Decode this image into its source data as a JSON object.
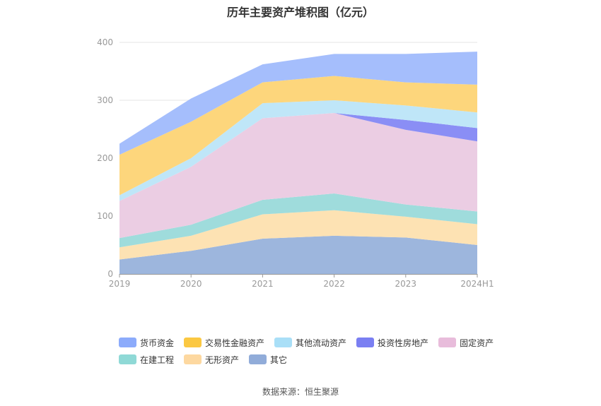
{
  "chart_data": {
    "type": "area",
    "stacked": true,
    "title": "历年主要资产堆积图（亿元）",
    "categories": [
      "2019",
      "2020",
      "2021",
      "2022",
      "2023",
      "2024H1"
    ],
    "y_ticks": [
      "0",
      "100",
      "200",
      "300",
      "400"
    ],
    "ylim": [
      0,
      400
    ],
    "grid": true,
    "series": [
      {
        "name": "其它",
        "color": "#9db6dd",
        "values": [
          25,
          40,
          61,
          66,
          63,
          50
        ]
      },
      {
        "name": "无形资产",
        "color": "#fde2b3",
        "values": [
          21,
          26,
          42,
          44,
          36,
          36
        ]
      },
      {
        "name": "在建工程",
        "color": "#9fdcdc",
        "values": [
          16,
          19,
          25,
          29,
          21,
          22
        ]
      },
      {
        "name": "固定资产",
        "color": "#ebcde3",
        "values": [
          64,
          100,
          141,
          139,
          129,
          121
        ]
      },
      {
        "name": "投资性房地产",
        "color": "#8a8ef5",
        "values": [
          0,
          0,
          0,
          0,
          17,
          23
        ]
      },
      {
        "name": "其他流动资产",
        "color": "#bfe6f8",
        "values": [
          10,
          15,
          26,
          22,
          25,
          27
        ]
      },
      {
        "name": "交易性金融资产",
        "color": "#fdd67c",
        "values": [
          70,
          63,
          36,
          42,
          40,
          48
        ]
      },
      {
        "name": "货币资金",
        "color": "#a5befc",
        "values": [
          19,
          40,
          31,
          38,
          49,
          57
        ]
      }
    ]
  },
  "legend": {
    "row1": [
      {
        "label": "货币资金",
        "color": "#8cabfb"
      },
      {
        "label": "交易性金融资产",
        "color": "#fbc842"
      },
      {
        "label": "其他流动资产",
        "color": "#a9dff7"
      },
      {
        "label": "投资性房地产",
        "color": "#7a7ff2"
      },
      {
        "label": "固定资产",
        "color": "#e8bcdb"
      }
    ],
    "row2": [
      {
        "label": "在建工程",
        "color": "#8fd9d6"
      },
      {
        "label": "无形资产",
        "color": "#fdd8a0"
      },
      {
        "label": "其它",
        "color": "#91acd9"
      }
    ]
  },
  "source": "数据来源：恒生聚源"
}
